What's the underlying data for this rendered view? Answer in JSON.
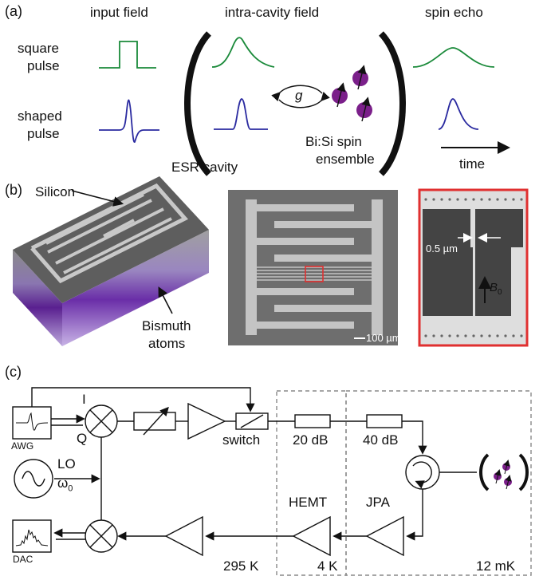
{
  "panel_a": {
    "label": "(a)",
    "col_input": "input field",
    "col_intra": "intra-cavity field",
    "col_echo": "spin echo",
    "row_square_1": "square",
    "row_square_2": "pulse",
    "row_shaped_1": "shaped",
    "row_shaped_2": "pulse",
    "coupling": "g",
    "cavity": "ESR cavity",
    "ensemble_1": "Bi:Si spin",
    "ensemble_2": "ensemble",
    "time": "time",
    "colors": {
      "square": "#1a8a3a",
      "shaped": "#2a2aa0",
      "spin": "#7b1f8a"
    }
  },
  "panel_b": {
    "label": "(b)",
    "silicon": "Silicon",
    "bismuth_1": "Bismuth",
    "bismuth_2": "atoms",
    "scale": "100 µm",
    "gap": "0.5 µm",
    "field": "B",
    "field_sub": "0",
    "colors": {
      "highlight": "#e03030",
      "layer": "#7030a0"
    }
  },
  "panel_c": {
    "label": "(c)",
    "awg": "AWG",
    "i": "I",
    "q": "Q",
    "lo": "LO",
    "omega": "ω",
    "omega_sub": "0",
    "dac": "DAC",
    "switch": "switch",
    "att1": "20 dB",
    "att2": "40 dB",
    "hemt": "HEMT",
    "jpa": "JPA",
    "t_room": "295 K",
    "t_4k": "4 K",
    "t_mk": "12 mK"
  }
}
